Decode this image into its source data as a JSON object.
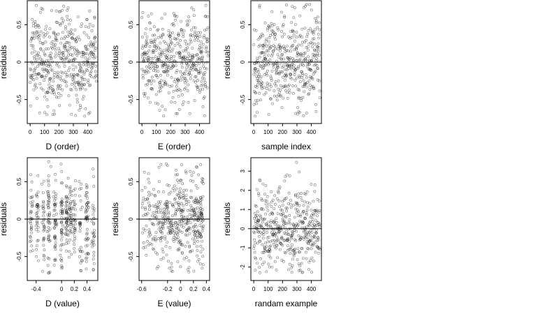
{
  "figure": {
    "point_color": "#000000",
    "point_style": "open-circle",
    "background": "#ffffff"
  },
  "chart_data": [
    {
      "id": "panel-d-order",
      "type": "scatter",
      "title": "",
      "xlabel": "D (order)",
      "ylabel": "residuals",
      "x_ticks": [
        0,
        100,
        200,
        300,
        400
      ],
      "y_ticks": [
        -0.5,
        0.0,
        0.5
      ],
      "xlim": [
        -20,
        470
      ],
      "ylim": [
        -0.82,
        0.82
      ],
      "reference_line_y": 0,
      "n_points": 460,
      "seed": 11,
      "x_mode": "index",
      "y_spread": 0.3,
      "pattern": "wave"
    },
    {
      "id": "panel-e-order",
      "type": "scatter",
      "title": "",
      "xlabel": "E (order)",
      "ylabel": "residuals",
      "x_ticks": [
        0,
        100,
        200,
        300,
        400
      ],
      "y_ticks": [
        -0.5,
        0.0,
        0.5
      ],
      "xlim": [
        -20,
        470
      ],
      "ylim": [
        -0.82,
        0.82
      ],
      "reference_line_y": 0,
      "n_points": 460,
      "seed": 23,
      "x_mode": "index",
      "y_spread": 0.3,
      "pattern": "flat"
    },
    {
      "id": "panel-sample-index",
      "type": "scatter",
      "title": "",
      "xlabel": "sample index",
      "ylabel": "residuals",
      "x_ticks": [
        0,
        100,
        200,
        300,
        400
      ],
      "y_ticks": [
        -0.5,
        0.0,
        0.5
      ],
      "xlim": [
        -20,
        470
      ],
      "ylim": [
        -0.82,
        0.82
      ],
      "reference_line_y": 0,
      "n_points": 460,
      "seed": 37,
      "x_mode": "index",
      "y_spread": 0.3,
      "pattern": "sawtooth"
    },
    {
      "id": "panel-d-value",
      "type": "scatter",
      "title": "",
      "xlabel": "D (value)",
      "ylabel": "residuals",
      "x_ticks": [
        -0.4,
        0.0,
        0.2,
        0.4
      ],
      "y_ticks": [
        -0.5,
        0.0,
        0.5
      ],
      "xlim": [
        -0.54,
        0.57
      ],
      "ylim": [
        -0.82,
        0.82
      ],
      "reference_line_y": 0,
      "n_points": 460,
      "seed": 41,
      "x_mode": "clusters",
      "x_centers": [
        -0.48,
        -0.38,
        -0.28,
        -0.2,
        -0.1,
        0.0,
        0.08,
        0.14,
        0.2,
        0.3,
        0.4,
        0.5
      ],
      "x_jitter": 0.012,
      "y_spread": 0.3,
      "pattern": "flat"
    },
    {
      "id": "panel-e-value",
      "type": "scatter",
      "title": "",
      "xlabel": "E (value)",
      "ylabel": "residuals",
      "x_ticks": [
        -0.6,
        -0.2,
        0.0,
        0.2,
        0.4
      ],
      "y_ticks": [
        -0.5,
        0.0,
        0.5
      ],
      "xlim": [
        -0.64,
        0.45
      ],
      "ylim": [
        -0.82,
        0.82
      ],
      "reference_line_y": 0,
      "n_points": 460,
      "seed": 53,
      "x_mode": "skewed",
      "x_min": -0.6,
      "x_max": 0.36,
      "y_spread": 0.3,
      "pattern": "flat"
    },
    {
      "id": "panel-random-example",
      "type": "scatter",
      "title": "",
      "xlabel": "randam example",
      "ylabel": "residuals",
      "x_ticks": [
        0,
        100,
        200,
        300,
        400
      ],
      "y_ticks": [
        -2,
        -1,
        0,
        1,
        2,
        3
      ],
      "xlim": [
        -20,
        470
      ],
      "ylim": [
        -2.7,
        3.7
      ],
      "reference_line_y": 0,
      "n_points": 460,
      "seed": 67,
      "x_mode": "index",
      "y_spread": 1.0,
      "pattern": "flat"
    }
  ]
}
